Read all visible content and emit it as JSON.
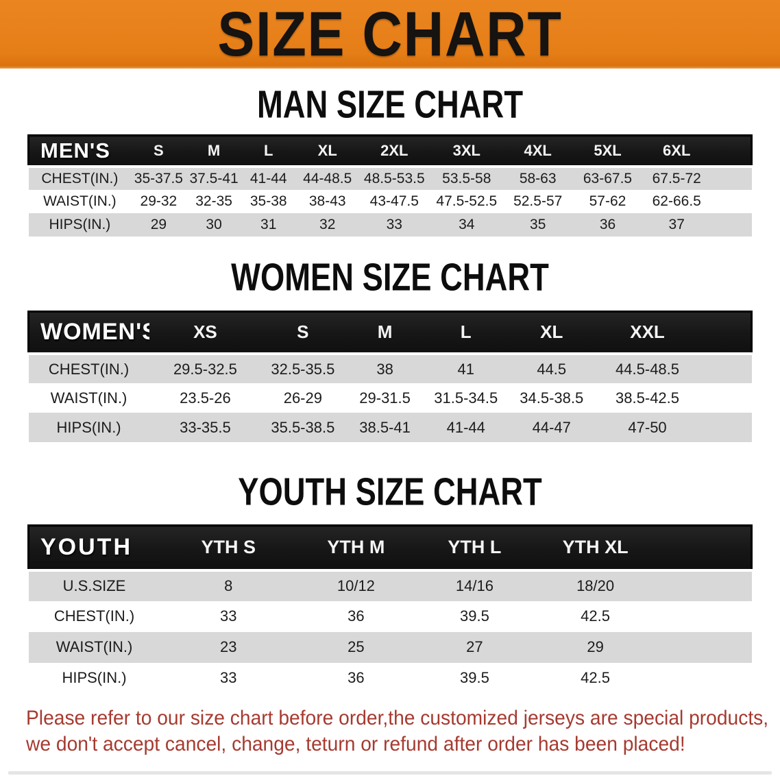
{
  "banner": {
    "title": "SIZE CHART",
    "bg_color": "#e67e17",
    "text_color": "#161310"
  },
  "sections": [
    {
      "heading": "MAN SIZE CHART",
      "table": {
        "corner": "MEN'S",
        "sizes": [
          "S",
          "M",
          "L",
          "XL",
          "2XL",
          "3XL",
          "4XL",
          "5XL",
          "6XL"
        ],
        "rows": [
          {
            "label": "CHEST(IN.)",
            "values": [
              "35-37.5",
              "37.5-41",
              "41-44",
              "44-48.5",
              "48.5-53.5",
              "53.5-58",
              "58-63",
              "63-67.5",
              "67.5-72"
            ]
          },
          {
            "label": "WAIST(IN.)",
            "values": [
              "29-32",
              "32-35",
              "35-38",
              "38-43",
              "43-47.5",
              "47.5-52.5",
              "52.5-57",
              "57-62",
              "62-66.5"
            ]
          },
          {
            "label": "HIPS(IN.)",
            "values": [
              "29",
              "30",
              "31",
              "32",
              "33",
              "34",
              "35",
              "36",
              "37"
            ]
          }
        ]
      }
    },
    {
      "heading": "WOMEN SIZE CHART",
      "table": {
        "corner": "WOMEN'S",
        "sizes": [
          "XS",
          "S",
          "M",
          "L",
          "XL",
          "XXL"
        ],
        "rows": [
          {
            "label": "CHEST(IN.)",
            "values": [
              "29.5-32.5",
              "32.5-35.5",
              "38",
              "41",
              "44.5",
              "44.5-48.5"
            ]
          },
          {
            "label": "WAIST(IN.)",
            "values": [
              "23.5-26",
              "26-29",
              "29-31.5",
              "31.5-34.5",
              "34.5-38.5",
              "38.5-42.5"
            ]
          },
          {
            "label": "HIPS(IN.)",
            "values": [
              "33-35.5",
              "35.5-38.5",
              "38.5-41",
              "41-44",
              "44-47",
              "47-50"
            ]
          }
        ]
      }
    },
    {
      "heading": "YOUTH SIZE CHART",
      "table": {
        "corner": "YOUTH",
        "sizes": [
          "YTH S",
          "YTH M",
          "YTH L",
          "YTH XL"
        ],
        "rows": [
          {
            "label": "U.S.SIZE",
            "values": [
              "8",
              "10/12",
              "14/16",
              "18/20"
            ]
          },
          {
            "label": "CHEST(IN.)",
            "values": [
              "33",
              "36",
              "39.5",
              "42.5"
            ]
          },
          {
            "label": "WAIST(IN.)",
            "values": [
              "23",
              "25",
              "27",
              "29"
            ]
          },
          {
            "label": "HIPS(IN.)",
            "values": [
              "33",
              "36",
              "39.5",
              "42.5"
            ]
          }
        ]
      }
    }
  ],
  "disclaimer": {
    "line1": "Please refer to our size chart before order,the customized jerseys are special products,",
    "line2": "we don't accept cancel, change, teturn or refund after order has been placed!",
    "color": "#a63a30"
  },
  "colors": {
    "banner_orange": "#e67e17",
    "header_bar_black": "#161616",
    "row_stripe_gray": "#d8d8d8"
  }
}
